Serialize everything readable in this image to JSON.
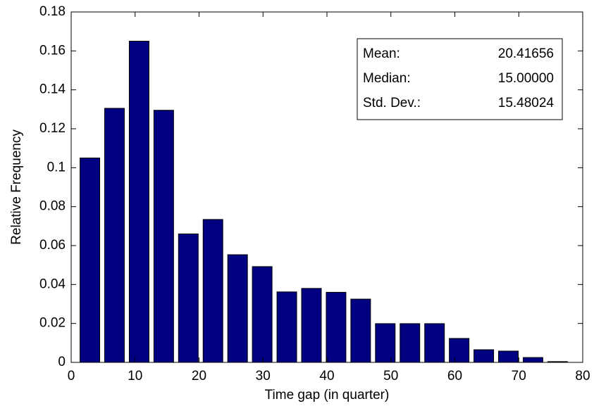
{
  "chart_data": {
    "type": "histogram",
    "xlabel": "Time gap (in quarter)",
    "ylabel": "Relative Frequency",
    "bins": [
      1,
      4.85,
      8.7,
      12.55,
      16.4,
      20.25,
      24.1,
      27.95,
      31.8,
      35.65,
      39.5,
      43.35,
      47.2,
      51.05,
      54.9,
      58.75,
      62.6,
      66.45,
      70.3,
      74.15,
      78
    ],
    "values": [
      0.105,
      0.1305,
      0.165,
      0.1295,
      0.066,
      0.0734,
      0.0553,
      0.0492,
      0.0362,
      0.038,
      0.036,
      0.0325,
      0.0199,
      0.0199,
      0.0199,
      0.0123,
      0.0065,
      0.0058,
      0.0025,
      0.0004
    ],
    "color": "#000080",
    "xlim": [
      0,
      80
    ],
    "xticks": [
      0,
      10,
      20,
      30,
      40,
      50,
      60,
      70,
      80
    ],
    "ylim": [
      0,
      0.18
    ],
    "yticks": [
      0,
      0.02,
      0.04,
      0.06,
      0.08,
      0.1,
      0.12,
      0.14,
      0.16,
      0.18
    ],
    "annotations": [
      {
        "label": "Mean:",
        "text": "20.41656"
      },
      {
        "label": "Median:",
        "text": "15.00000"
      },
      {
        "label": "Std. Dev.:",
        "text": "15.48024"
      }
    ]
  }
}
